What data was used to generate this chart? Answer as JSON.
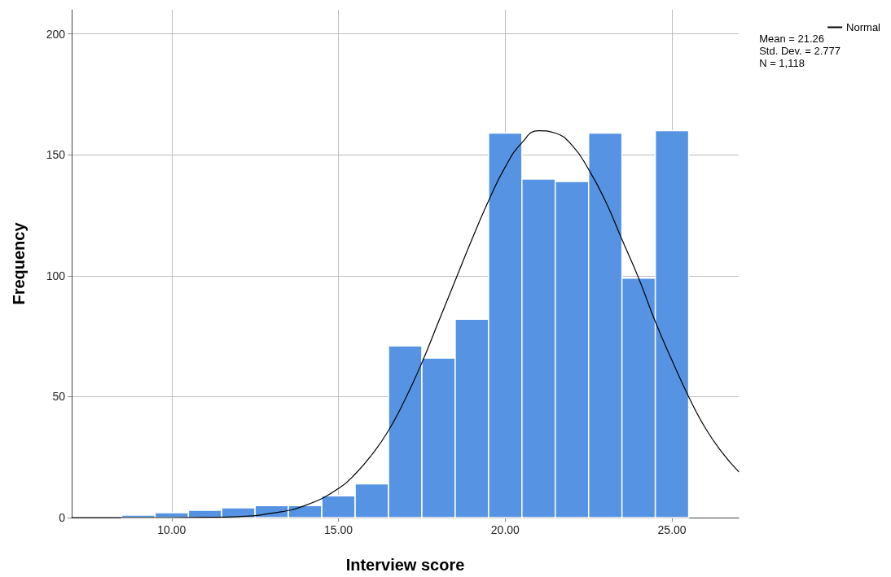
{
  "chart_data": {
    "type": "histogram",
    "xlabel": "Interview score",
    "ylabel": "Frequency",
    "bins": [
      8.5,
      9.5,
      10.5,
      11.5,
      12.5,
      13.5,
      14.5,
      15.5,
      16.5,
      17.5,
      18.5,
      19.5,
      20.5,
      21.5,
      22.5,
      23.5,
      24.5,
      25.5
    ],
    "values": [
      1,
      2,
      3,
      4,
      5,
      5,
      9,
      14,
      71,
      66,
      82,
      159,
      140,
      139,
      159,
      99,
      160
    ],
    "color": "#5694e3",
    "series": [
      {
        "type": "line",
        "name": "Normal",
        "color": "#000000",
        "x": [
          7,
          9,
          10,
          11,
          12,
          13,
          14,
          15,
          15.5,
          16,
          16.5,
          17,
          17.5,
          18,
          18.5,
          19,
          19.5,
          20,
          20.5,
          21,
          21.5,
          22,
          22.5,
          23,
          23.5,
          24,
          24.5,
          25,
          25.5,
          26,
          26.5,
          27
        ],
        "values": [
          0,
          0,
          0,
          0.1,
          0.4,
          1.8,
          5,
          12,
          18,
          26,
          36,
          49,
          64,
          81,
          98,
          115,
          131,
          145,
          155,
          160,
          159,
          154,
          144,
          131,
          115,
          99,
          81,
          65,
          50,
          37,
          27,
          19
        ]
      }
    ],
    "xlim": [
      7,
      27
    ],
    "xticks": [
      {
        "value": 10,
        "label": "10.00"
      },
      {
        "value": 15,
        "label": "15.00"
      },
      {
        "value": 20,
        "label": "20.00"
      },
      {
        "value": 25,
        "label": "25.00"
      }
    ],
    "ylim": [
      0,
      210
    ],
    "yticks": [
      0,
      50,
      100,
      150,
      200
    ],
    "grid": true,
    "legend": "top right",
    "marker": "none",
    "line_style": "solid",
    "annotations": [
      "Mean = 21.26",
      "Std. Dev. = 2.777",
      "N = 1,118"
    ]
  }
}
